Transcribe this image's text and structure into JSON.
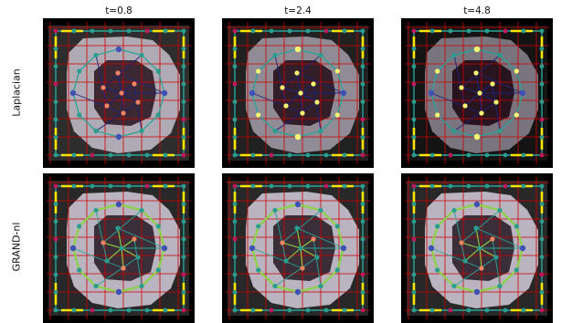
{
  "column_titles": [
    "t=0.8",
    "t=2.4",
    "t=4.8"
  ],
  "row_labels": [
    "Laplacian",
    "GRAND-nl"
  ],
  "colors": {
    "background": "#000000",
    "grid_line": "#d10000",
    "node_teal": "#2a9d8f",
    "node_magenta": "#c2185b",
    "node_orange": "#f4845f",
    "node_yellow": "#f9f871",
    "node_blue": "#3f51b5",
    "edge_teal": "#26a69a",
    "edge_green": "#8bd346",
    "edge_yellow": "#ffe600",
    "edge_navy": "#1a237e"
  }
}
